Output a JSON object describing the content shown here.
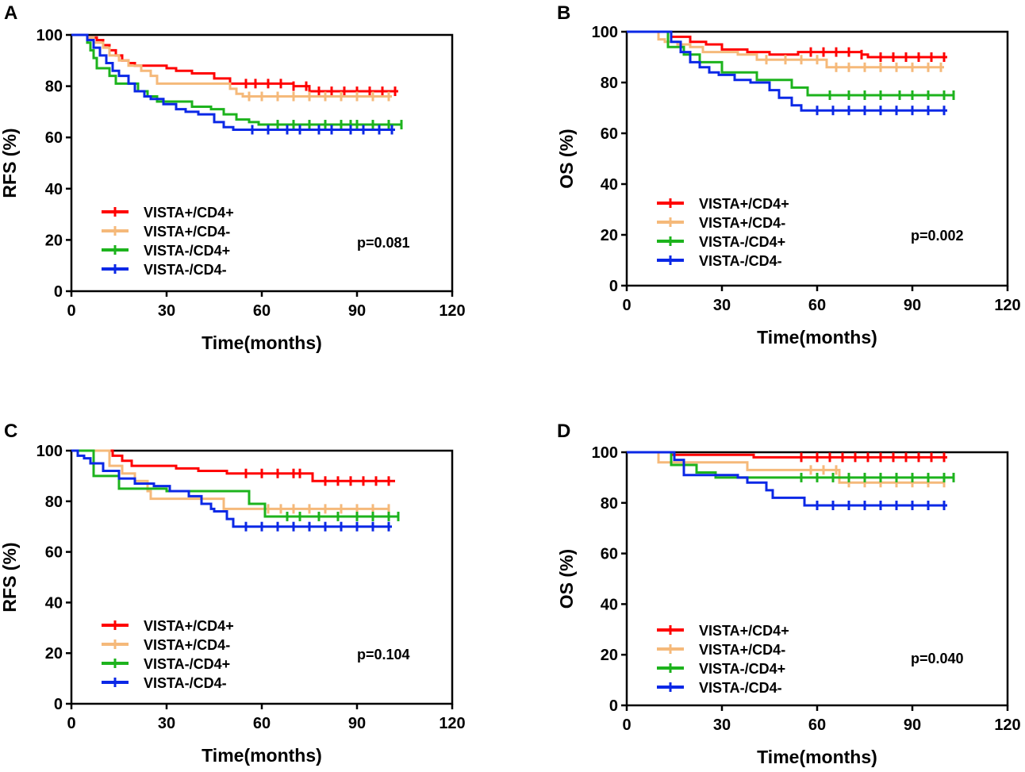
{
  "chart_data": [
    {
      "type": "line",
      "panel": "A",
      "xlabel": "Time(months)",
      "ylabel": "RFS (%)",
      "xlim": [
        0,
        120
      ],
      "ylim": [
        0,
        100
      ],
      "xticks": [
        0,
        30,
        60,
        90,
        120
      ],
      "yticks": [
        0,
        20,
        40,
        60,
        80,
        100
      ],
      "pvalue": "p=0.081",
      "series": [
        {
          "name": "VISTA+/CD4+",
          "color": "#ff0000",
          "x": [
            0,
            3,
            5,
            8,
            10,
            12,
            14,
            16,
            18,
            20,
            25,
            30,
            33,
            38,
            45,
            50,
            60,
            70,
            75,
            103
          ],
          "y": [
            100,
            100,
            99,
            98,
            96,
            94,
            92,
            90,
            89,
            88,
            88,
            87,
            86,
            85,
            83,
            81,
            81,
            80,
            78,
            78
          ],
          "censor_x": [
            55,
            58,
            62,
            66,
            70,
            74,
            78,
            82,
            86,
            90,
            94,
            98,
            102
          ]
        },
        {
          "name": "VISTA+/CD4-",
          "color": "#f5b97a",
          "x": [
            0,
            3,
            5,
            7,
            10,
            12,
            15,
            18,
            22,
            25,
            27,
            48,
            50,
            52,
            54,
            101
          ],
          "y": [
            100,
            100,
            99,
            97,
            95,
            92,
            90,
            88,
            86,
            84,
            81,
            81,
            79,
            77,
            76,
            76
          ],
          "censor_x": [
            56,
            60,
            65,
            70,
            75,
            80,
            85,
            90,
            95,
            100
          ]
        },
        {
          "name": "VISTA-/CD4+",
          "color": "#1db31d",
          "x": [
            0,
            3,
            5,
            6,
            7,
            8,
            12,
            14,
            18,
            21,
            24,
            27,
            34,
            38,
            44,
            48,
            52,
            56,
            59,
            63,
            104
          ],
          "y": [
            100,
            100,
            97,
            94,
            91,
            87,
            84,
            81,
            81,
            78,
            76,
            74,
            74,
            72,
            71,
            69,
            67,
            66,
            65,
            65,
            65
          ],
          "censor_x": [
            65,
            70,
            75,
            80,
            85,
            88,
            90,
            95,
            100,
            104
          ]
        },
        {
          "name": "VISTA-/CD4-",
          "color": "#0b28e6",
          "x": [
            0,
            3,
            5,
            7,
            9,
            11,
            13,
            15,
            18,
            20,
            23,
            25,
            29,
            33,
            36,
            40,
            45,
            48,
            51,
            52,
            102
          ],
          "y": [
            100,
            100,
            98,
            95,
            92,
            89,
            86,
            84,
            81,
            78,
            76,
            75,
            73,
            71,
            70,
            69,
            66,
            64,
            63,
            63,
            63
          ],
          "censor_x": [
            57,
            62,
            68,
            72,
            78,
            82,
            88,
            92,
            97,
            101
          ]
        }
      ]
    },
    {
      "type": "line",
      "panel": "B",
      "xlabel": "Time(months)",
      "ylabel": "OS (%)",
      "xlim": [
        0,
        120
      ],
      "ylim": [
        0,
        100
      ],
      "xticks": [
        0,
        30,
        60,
        90,
        120
      ],
      "yticks": [
        0,
        20,
        40,
        60,
        80,
        100
      ],
      "pvalue": "p=0.002",
      "series": [
        {
          "name": "VISTA+/CD4+",
          "color": "#ff0000",
          "x": [
            0,
            12,
            14,
            20,
            25,
            30,
            38,
            45,
            54,
            74,
            76,
            101
          ],
          "y": [
            100,
            100,
            98,
            96,
            95,
            93,
            92,
            91,
            92,
            91,
            90,
            90
          ],
          "censor_x": [
            58,
            62,
            66,
            70,
            74,
            80,
            84,
            88,
            92,
            96,
            100
          ]
        },
        {
          "name": "VISTA+/CD4-",
          "color": "#f5b97a",
          "x": [
            0,
            8,
            10,
            12,
            16,
            20,
            24,
            35,
            41,
            61,
            63,
            100
          ],
          "y": [
            100,
            100,
            97,
            96,
            95,
            94,
            92,
            91,
            89,
            89,
            86,
            86
          ],
          "censor_x": [
            44,
            50,
            55,
            60,
            66,
            70,
            75,
            80,
            85,
            90,
            95,
            99
          ]
        },
        {
          "name": "VISTA-/CD4+",
          "color": "#1db31d",
          "x": [
            0,
            13,
            18,
            23,
            30,
            41,
            52,
            57,
            60,
            103
          ],
          "y": [
            100,
            94,
            91,
            88,
            84,
            81,
            78,
            75,
            75,
            75
          ],
          "censor_x": [
            64,
            70,
            75,
            80,
            86,
            90,
            95,
            100,
            103
          ]
        },
        {
          "name": "VISTA-/CD4-",
          "color": "#0b28e6",
          "x": [
            0,
            14,
            17,
            20,
            23,
            26,
            29,
            34,
            39,
            45,
            48,
            52,
            55,
            101
          ],
          "y": [
            100,
            96,
            92,
            88,
            86,
            84,
            83,
            81,
            80,
            77,
            74,
            71,
            69,
            69
          ],
          "censor_x": [
            60,
            65,
            70,
            75,
            80,
            85,
            90,
            95,
            100
          ]
        }
      ]
    },
    {
      "type": "line",
      "panel": "C",
      "xlabel": "Time(months)",
      "ylabel": "RFS (%)",
      "xlim": [
        0,
        120
      ],
      "ylim": [
        0,
        100
      ],
      "xticks": [
        0,
        30,
        60,
        90,
        120
      ],
      "yticks": [
        0,
        20,
        40,
        60,
        80,
        100
      ],
      "pvalue": "p=0.104",
      "series": [
        {
          "name": "VISTA+/CD4+",
          "color": "#ff0000",
          "x": [
            0,
            11,
            13,
            16,
            19,
            25,
            33,
            40,
            49,
            74,
            76,
            102
          ],
          "y": [
            100,
            100,
            98,
            96,
            94,
            94,
            93,
            92,
            91,
            91,
            88,
            88
          ],
          "censor_x": [
            55,
            60,
            65,
            70,
            72,
            80,
            84,
            88,
            92,
            96,
            100
          ]
        },
        {
          "name": "VISTA+/CD4-",
          "color": "#f5b97a",
          "x": [
            0,
            7,
            12,
            16,
            20,
            24,
            25,
            45,
            48,
            100
          ],
          "y": [
            100,
            100,
            94,
            91,
            88,
            84,
            81,
            81,
            77,
            77
          ],
          "censor_x": [
            62,
            66,
            70,
            75,
            80,
            85,
            90,
            95,
            100
          ]
        },
        {
          "name": "VISTA-/CD4+",
          "color": "#1db31d",
          "x": [
            0,
            5,
            7,
            12,
            15,
            20,
            25,
            30,
            52,
            56,
            61,
            103
          ],
          "y": [
            100,
            100,
            90,
            90,
            85,
            85,
            85,
            84,
            84,
            79,
            74,
            74
          ],
          "censor_x": [
            68,
            72,
            78,
            84,
            90,
            95,
            100,
            103
          ]
        },
        {
          "name": "VISTA-/CD4-",
          "color": "#0b28e6",
          "x": [
            0,
            2,
            4,
            6,
            10,
            15,
            20,
            26,
            31,
            37,
            41,
            44,
            45,
            49,
            51,
            101
          ],
          "y": [
            100,
            98,
            97,
            95,
            92,
            89,
            87,
            86,
            84,
            82,
            79,
            77,
            76,
            73,
            70,
            70
          ],
          "censor_x": [
            55,
            60,
            65,
            70,
            75,
            80,
            85,
            90,
            95,
            100
          ]
        }
      ]
    },
    {
      "type": "line",
      "panel": "D",
      "xlabel": "Time(months)",
      "ylabel": "OS (%)",
      "xlim": [
        0,
        120
      ],
      "ylim": [
        0,
        100
      ],
      "xticks": [
        0,
        30,
        60,
        90,
        120
      ],
      "yticks": [
        0,
        20,
        40,
        60,
        80,
        100
      ],
      "pvalue": "p=0.040",
      "series": [
        {
          "name": "VISTA+/CD4+",
          "color": "#ff0000",
          "x": [
            0,
            13,
            14,
            36,
            40,
            101
          ],
          "y": [
            100,
            100,
            99,
            99,
            98,
            98
          ],
          "censor_x": [
            55,
            60,
            64,
            68,
            72,
            76,
            80,
            84,
            88,
            92,
            96,
            100
          ]
        },
        {
          "name": "VISTA+/CD4-",
          "color": "#f5b97a",
          "x": [
            0,
            8,
            10,
            36,
            38,
            64,
            67,
            100
          ],
          "y": [
            100,
            100,
            96,
            96,
            93,
            93,
            88,
            88
          ],
          "censor_x": [
            58,
            62,
            66,
            70,
            75,
            80,
            85,
            90,
            95,
            100
          ]
        },
        {
          "name": "VISTA-/CD4+",
          "color": "#1db31d",
          "x": [
            0,
            13,
            14,
            22,
            28,
            103
          ],
          "y": [
            100,
            100,
            95,
            92,
            90,
            90
          ],
          "censor_x": [
            55,
            60,
            65,
            70,
            75,
            80,
            85,
            90,
            95,
            100,
            103
          ]
        },
        {
          "name": "VISTA-/CD4-",
          "color": "#0b28e6",
          "x": [
            0,
            13,
            15,
            18,
            25,
            35,
            38,
            44,
            46,
            54,
            56,
            101
          ],
          "y": [
            100,
            100,
            97,
            91,
            91,
            90,
            88,
            85,
            82,
            82,
            79,
            79
          ],
          "censor_x": [
            60,
            65,
            70,
            75,
            80,
            85,
            90,
            95,
            100
          ]
        }
      ]
    }
  ]
}
